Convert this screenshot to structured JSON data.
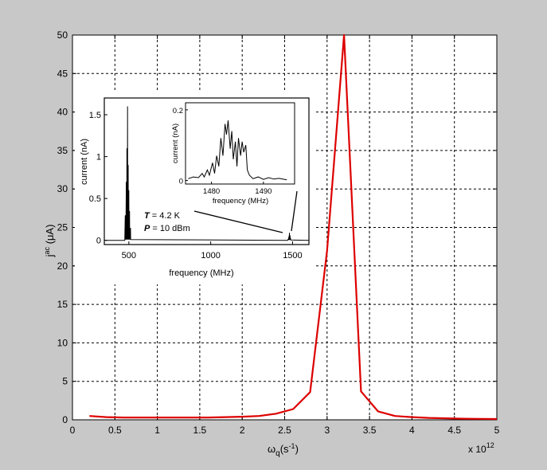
{
  "chart_data": [
    {
      "type": "line",
      "title": "",
      "xlabel_main": "ω",
      "xlabel_sub": "q",
      "xlabel_paren": "(s",
      "xlabel_sup": "-1",
      "xlabel_close": ")",
      "ylabel_main": "j",
      "ylabel_sup": "ac",
      "ylabel_unit": " (μA)",
      "x_multiplier_prefix": "x 10",
      "x_multiplier_exp": "12",
      "xlim": [
        0,
        5
      ],
      "ylim": [
        0,
        50
      ],
      "xticks": [
        "0",
        "0.5",
        "1",
        "1.5",
        "2",
        "2.5",
        "3",
        "3.5",
        "4",
        "4.5",
        "5"
      ],
      "yticks": [
        "0",
        "5",
        "10",
        "15",
        "20",
        "25",
        "30",
        "35",
        "40",
        "45",
        "50"
      ],
      "grid": true,
      "line_color": "#dd0000",
      "x": [
        0.2,
        0.4,
        0.6,
        0.8,
        1.0,
        1.2,
        1.4,
        1.6,
        1.8,
        2.0,
        2.2,
        2.4,
        2.6,
        2.8,
        3.0,
        3.2,
        3.4,
        3.6,
        3.8,
        4.0,
        4.2,
        4.4,
        4.6,
        4.8,
        5.0
      ],
      "y": [
        0.5,
        0.35,
        0.3,
        0.3,
        0.3,
        0.3,
        0.3,
        0.3,
        0.35,
        0.4,
        0.5,
        0.8,
        1.4,
        3.6,
        22.0,
        50.0,
        3.7,
        1.1,
        0.5,
        0.35,
        0.25,
        0.2,
        0.15,
        0.12,
        0.1
      ]
    },
    {
      "type": "line",
      "title": "",
      "xlabel": "frequency (MHz)",
      "ylabel": "current (nA)",
      "xlim": [
        350,
        1600
      ],
      "ylim": [
        -0.05,
        1.7
      ],
      "xticks": [
        "500",
        "1000",
        "1500"
      ],
      "yticks": [
        "0",
        "0.5",
        "1",
        "1.5"
      ],
      "annotation_T": "T",
      "annotation_T_value": " = 4.2 K",
      "annotation_P": "P",
      "annotation_P_value": " = 10 dBm",
      "line_color": "#000000"
    },
    {
      "type": "line",
      "title": "",
      "xlabel": "frequency (MHz)",
      "ylabel": "current (nA)",
      "xlim": [
        1475,
        1496
      ],
      "ylim": [
        -0.01,
        0.22
      ],
      "xticks": [
        "1480",
        "1490"
      ],
      "yticks": [
        "0",
        "0.2"
      ],
      "line_color": "#000000"
    }
  ]
}
